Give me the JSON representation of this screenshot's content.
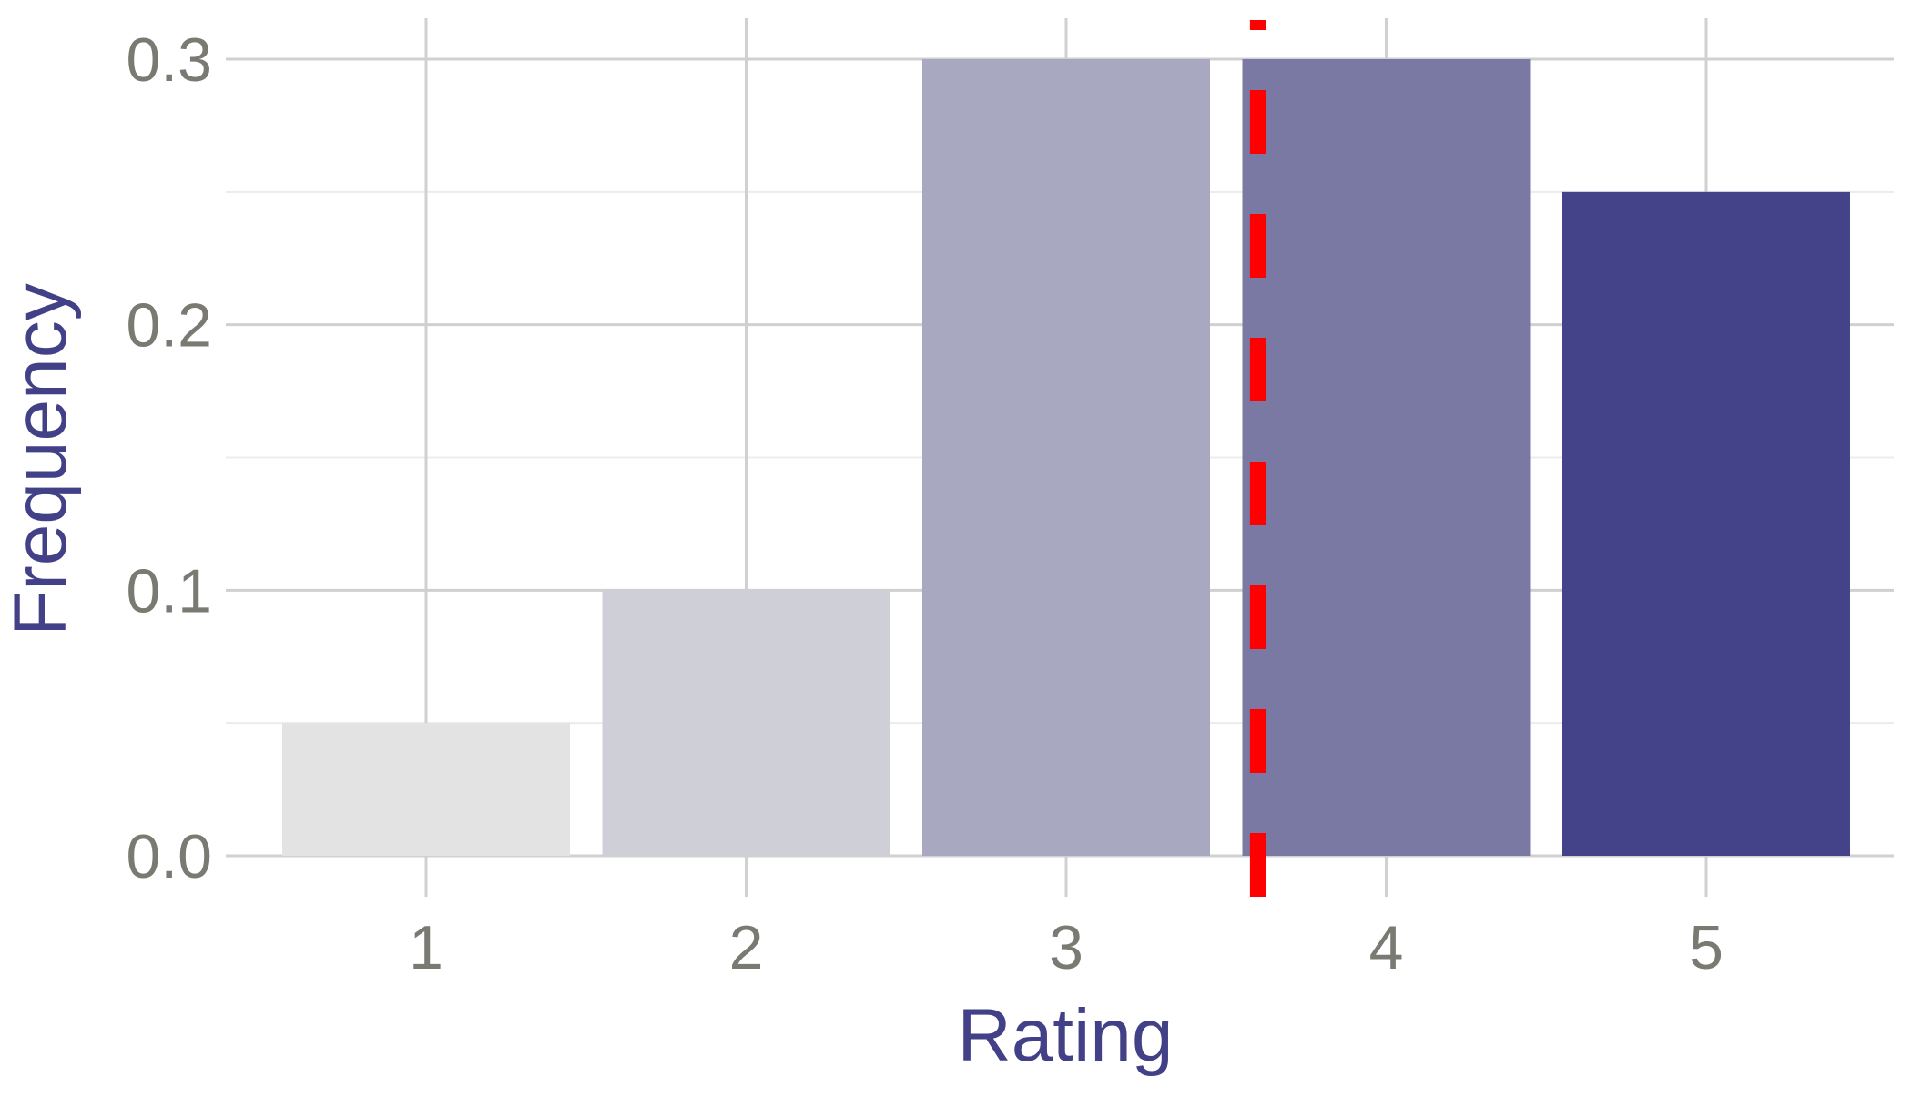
{
  "chart_data": {
    "type": "bar",
    "title": "",
    "xlabel": "Rating",
    "ylabel": "Frequency",
    "categories": [
      "1",
      "2",
      "3",
      "4",
      "5"
    ],
    "values": [
      0.05,
      0.1,
      0.3,
      0.3,
      0.25
    ],
    "bar_colors": [
      "#e3e3e3",
      "#cfcfd8",
      "#a8a8c0",
      "#7a79a4",
      "#444289"
    ],
    "ylim": [
      0,
      0.3
    ],
    "yticks": [
      "0.0",
      "0.1",
      "0.2",
      "0.3"
    ],
    "ytick_values": [
      0,
      0.1,
      0.2,
      0.3
    ],
    "grid": true,
    "legend": "none",
    "reference_line": {
      "orientation": "vertical",
      "x": 3.6,
      "style": "dashed",
      "color": "#ff0000"
    },
    "colors": {
      "axis_title": "#424086",
      "tick_label": "#7a7a72",
      "grid_major": "#d0d0d0",
      "grid_minor": "#ececec"
    }
  }
}
